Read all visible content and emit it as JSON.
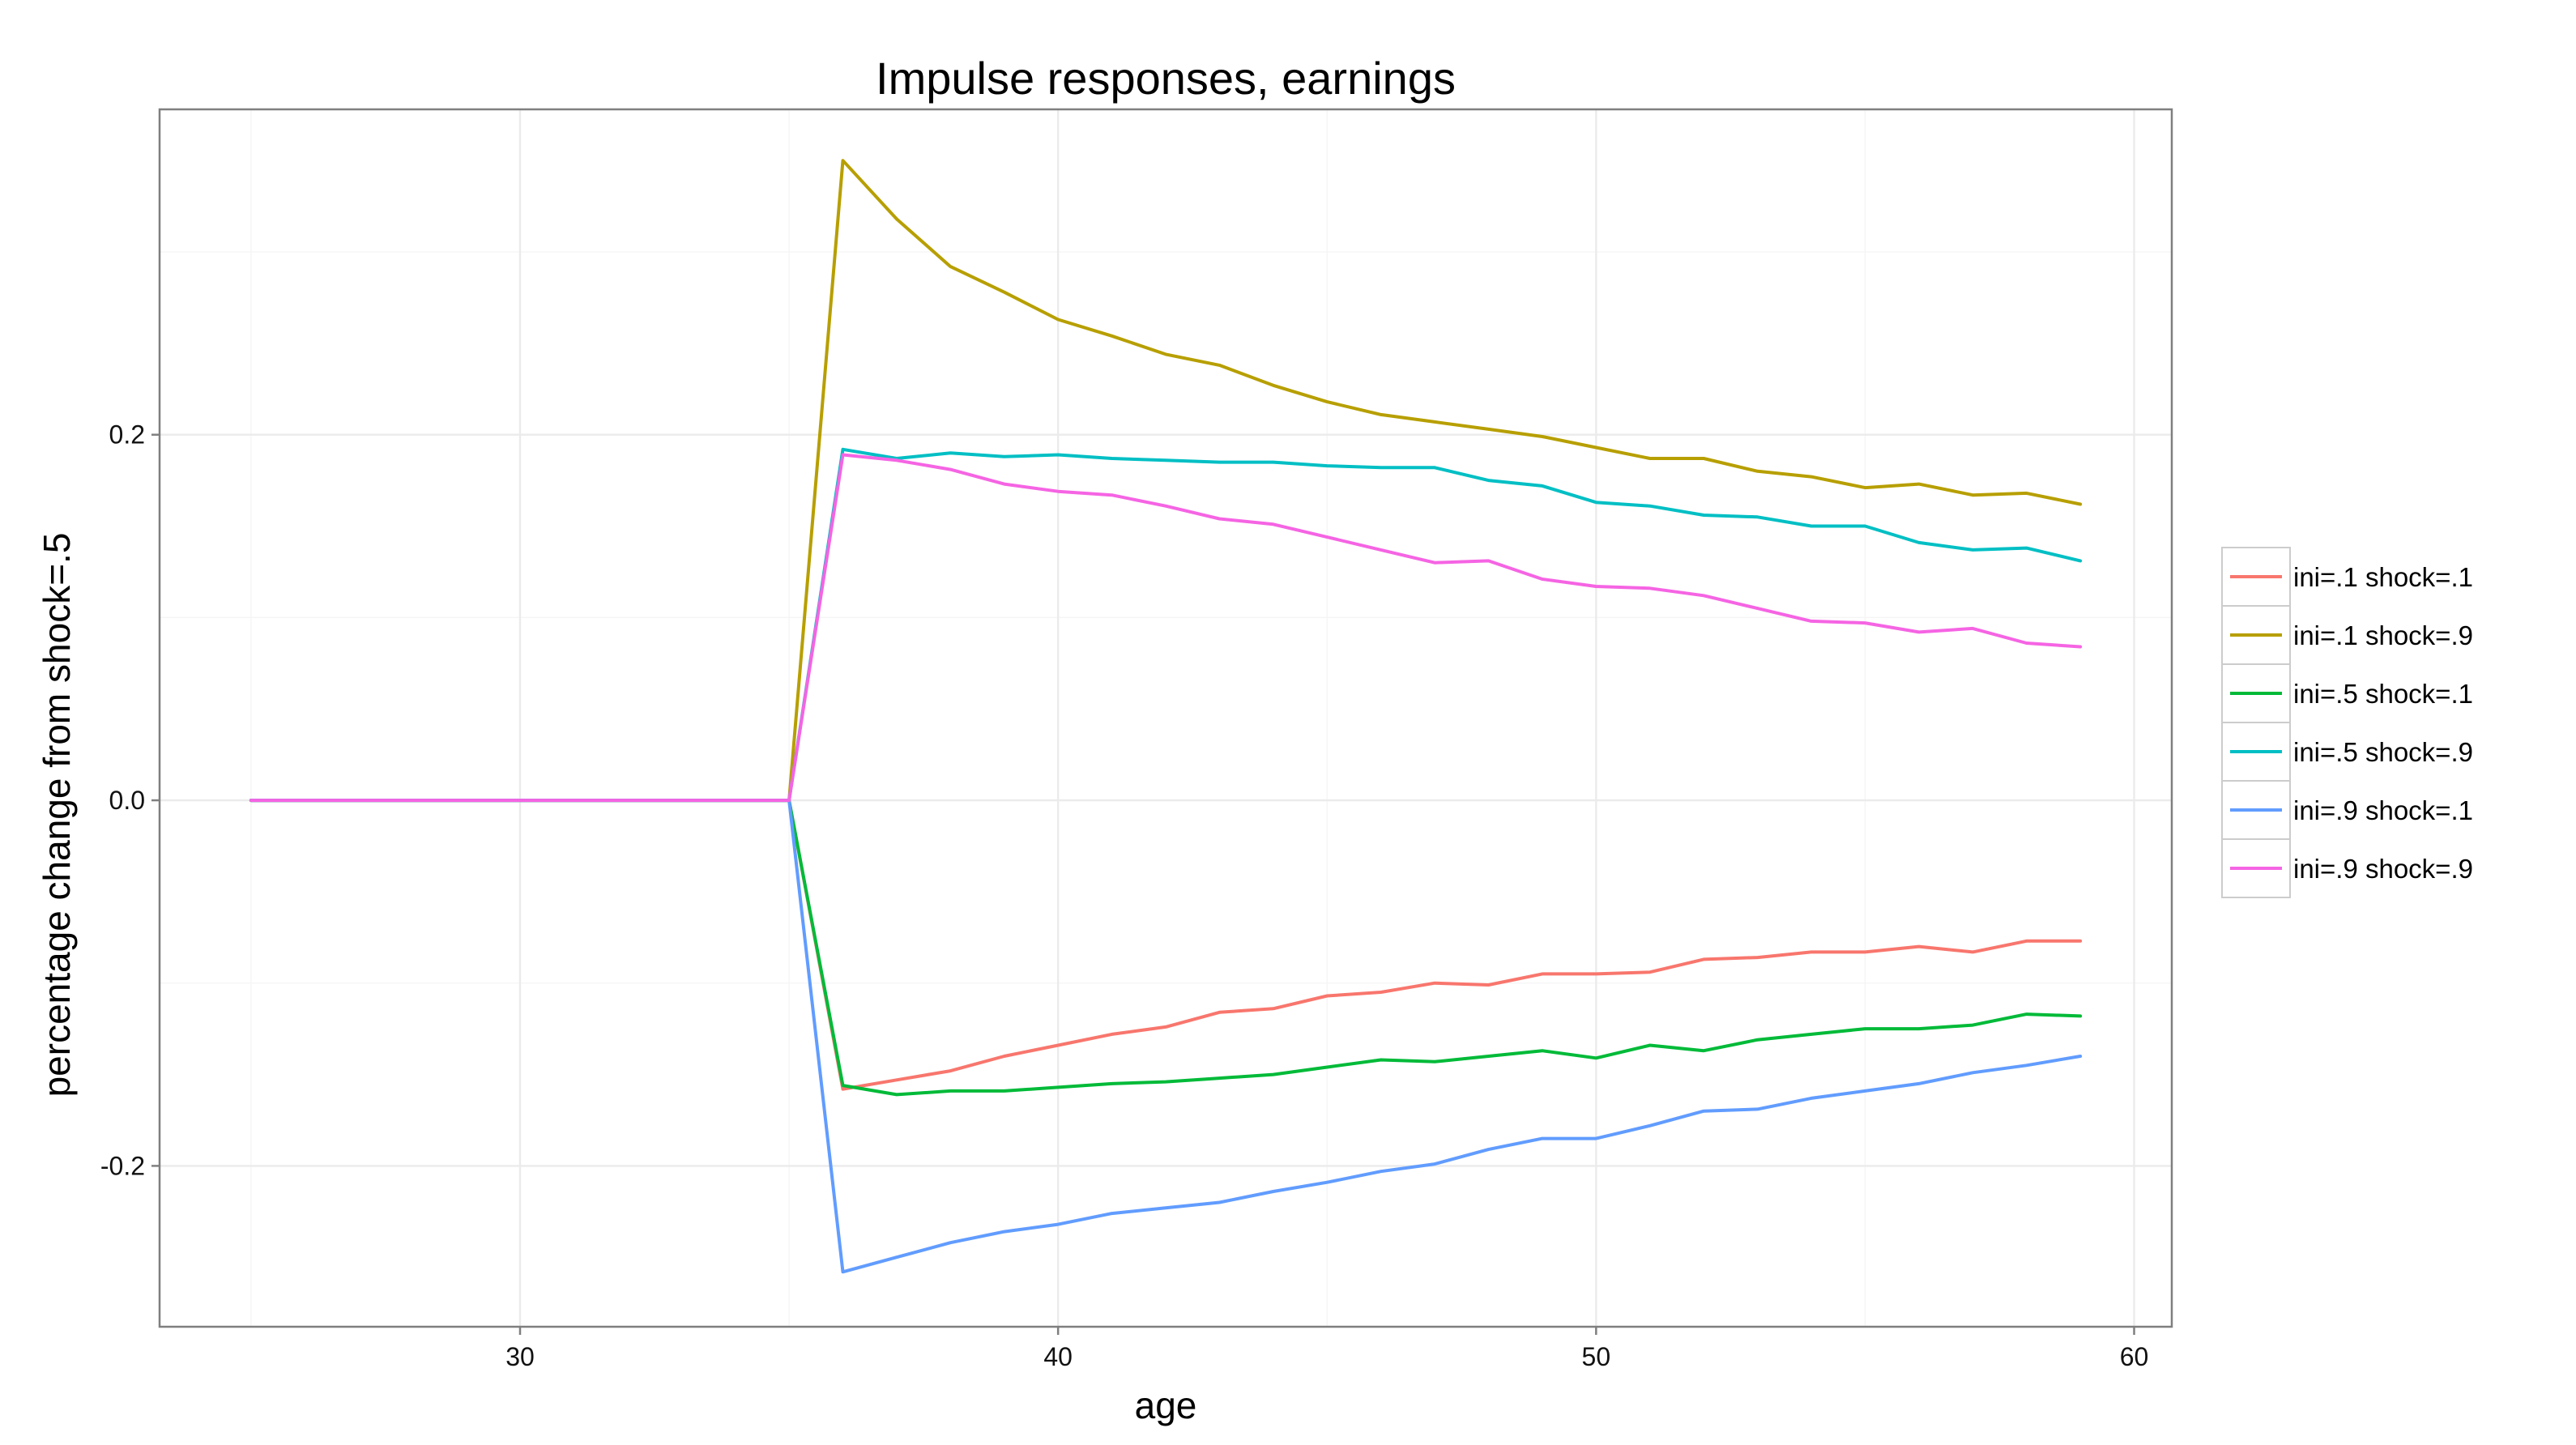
{
  "chart_data": {
    "type": "line",
    "title": "Impulse responses, earnings",
    "xlabel": "age",
    "ylabel": "percentage change from shock=.5",
    "xlim": [
      23.3,
      60.7
    ],
    "ylim": [
      -0.288,
      0.378
    ],
    "x_ticks": [
      30,
      40,
      50,
      60
    ],
    "x_tick_labels": [
      "30",
      "40",
      "50",
      "60"
    ],
    "y_ticks": [
      -0.2,
      0.0,
      0.2
    ],
    "y_tick_labels": [
      "-0.2",
      "0.0",
      "0.2"
    ],
    "grid": true,
    "legend_position": "right",
    "x": [
      25,
      26,
      27,
      28,
      29,
      30,
      31,
      32,
      33,
      34,
      35,
      36,
      37,
      38,
      39,
      40,
      41,
      42,
      43,
      44,
      45,
      46,
      47,
      48,
      49,
      50,
      51,
      52,
      53,
      54,
      55,
      56,
      57,
      58,
      59
    ],
    "series": [
      {
        "name": "ini=.1 shock=.1",
        "color": "#F8766D",
        "values": [
          0,
          0,
          0,
          0,
          0,
          0,
          0,
          0,
          0,
          0,
          0,
          -0.158,
          -0.153,
          -0.148,
          -0.14,
          -0.134,
          -0.128,
          -0.124,
          -0.116,
          -0.114,
          -0.107,
          -0.105,
          -0.1,
          -0.101,
          -0.095,
          -0.095,
          -0.094,
          -0.087,
          -0.086,
          -0.083,
          -0.083,
          -0.08,
          -0.083,
          -0.077,
          -0.077
        ]
      },
      {
        "name": "ini=.1 shock=.9",
        "color": "#B79F00",
        "values": [
          0,
          0,
          0,
          0,
          0,
          0,
          0,
          0,
          0,
          0,
          0,
          0.35,
          0.318,
          0.292,
          0.278,
          0.263,
          0.254,
          0.244,
          0.238,
          0.227,
          0.218,
          0.211,
          0.207,
          0.203,
          0.199,
          0.193,
          0.187,
          0.187,
          0.18,
          0.177,
          0.171,
          0.173,
          0.167,
          0.168,
          0.162
        ]
      },
      {
        "name": "ini=.5 shock=.1",
        "color": "#00BA38",
        "values": [
          0,
          0,
          0,
          0,
          0,
          0,
          0,
          0,
          0,
          0,
          0,
          -0.156,
          -0.161,
          -0.159,
          -0.159,
          -0.157,
          -0.155,
          -0.154,
          -0.152,
          -0.15,
          -0.146,
          -0.142,
          -0.143,
          -0.14,
          -0.137,
          -0.141,
          -0.134,
          -0.137,
          -0.131,
          -0.128,
          -0.125,
          -0.125,
          -0.123,
          -0.117,
          -0.118
        ]
      },
      {
        "name": "ini=.5 shock=.9",
        "color": "#00BFC4",
        "values": [
          0,
          0,
          0,
          0,
          0,
          0,
          0,
          0,
          0,
          0,
          0,
          0.192,
          0.187,
          0.19,
          0.188,
          0.189,
          0.187,
          0.186,
          0.185,
          0.185,
          0.183,
          0.182,
          0.182,
          0.175,
          0.172,
          0.163,
          0.161,
          0.156,
          0.155,
          0.15,
          0.15,
          0.141,
          0.137,
          0.138,
          0.131
        ]
      },
      {
        "name": "ini=.9 shock=.1",
        "color": "#619CFF",
        "values": [
          0,
          0,
          0,
          0,
          0,
          0,
          0,
          0,
          0,
          0,
          0,
          -0.258,
          -0.25,
          -0.242,
          -0.236,
          -0.232,
          -0.226,
          -0.223,
          -0.22,
          -0.214,
          -0.209,
          -0.203,
          -0.199,
          -0.191,
          -0.185,
          -0.185,
          -0.178,
          -0.17,
          -0.169,
          -0.163,
          -0.159,
          -0.155,
          -0.149,
          -0.145,
          -0.14
        ]
      },
      {
        "name": "ini=.9 shock=.9",
        "color": "#F564E3",
        "values": [
          0,
          0,
          0,
          0,
          0,
          0,
          0,
          0,
          0,
          0,
          0,
          0.189,
          0.186,
          0.181,
          0.173,
          0.169,
          0.167,
          0.161,
          0.154,
          0.151,
          0.144,
          0.137,
          0.13,
          0.131,
          0.121,
          0.117,
          0.116,
          0.112,
          0.105,
          0.098,
          0.097,
          0.092,
          0.094,
          0.086,
          0.084
        ]
      }
    ]
  }
}
